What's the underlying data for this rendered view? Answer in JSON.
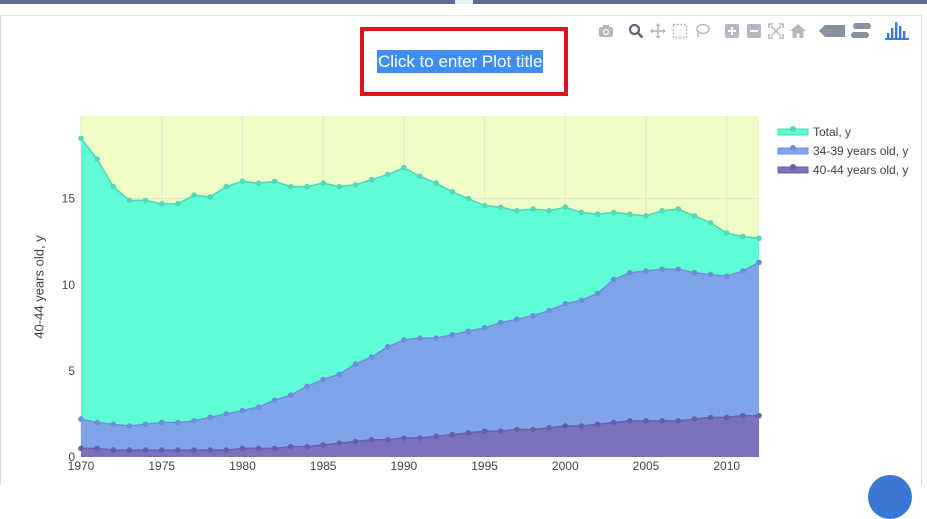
{
  "plot_title": "Click to enter Plot title",
  "toolbar": {
    "icons": [
      "camera-icon",
      "zoom-icon",
      "pan-icon",
      "box-select-icon",
      "lasso-select-icon",
      "zoom-in-icon",
      "zoom-out-icon",
      "autoscale-icon",
      "reset-axes-icon",
      "spike-lines-icon",
      "compare-hover-icon",
      "plotly-logo-icon"
    ]
  },
  "colors": {
    "plot_bg": "#eefcc5",
    "total": "#5efed6",
    "age34_39": "#80a4ea",
    "age40_44": "#7b72bf",
    "title_bg": "#3f8ef0",
    "highlight": "#e0161c"
  },
  "chart_data": {
    "type": "area",
    "title": "Click to enter Plot title",
    "xlabel": "",
    "ylabel": "40-44 years old, y",
    "xlim": [
      1970,
      2012
    ],
    "ylim": [
      0,
      19.8
    ],
    "x_ticks": [
      1970,
      1975,
      1980,
      1985,
      1990,
      1995,
      2000,
      2005,
      2010
    ],
    "y_ticks": [
      0,
      5,
      10,
      15
    ],
    "grid": true,
    "legend_position": "top-right",
    "x": [
      1970,
      1971,
      1972,
      1973,
      1974,
      1975,
      1976,
      1977,
      1978,
      1979,
      1980,
      1981,
      1982,
      1983,
      1984,
      1985,
      1986,
      1987,
      1988,
      1989,
      1990,
      1991,
      1992,
      1993,
      1994,
      1995,
      1996,
      1997,
      1998,
      1999,
      2000,
      2001,
      2002,
      2003,
      2004,
      2005,
      2006,
      2007,
      2008,
      2009,
      2010,
      2011,
      2012
    ],
    "series": [
      {
        "name": "Total, y",
        "values": [
          18.5,
          17.3,
          15.7,
          14.9,
          14.9,
          14.7,
          14.7,
          15.2,
          15.1,
          15.7,
          16.0,
          15.9,
          16.0,
          15.7,
          15.7,
          15.9,
          15.7,
          15.8,
          16.1,
          16.4,
          16.8,
          16.3,
          15.9,
          15.4,
          15.0,
          14.6,
          14.5,
          14.3,
          14.4,
          14.3,
          14.5,
          14.2,
          14.1,
          14.2,
          14.1,
          14.0,
          14.3,
          14.4,
          14.0,
          13.6,
          13.0,
          12.8,
          12.7
        ]
      },
      {
        "name": "34-39 years old, y",
        "values": [
          2.2,
          2.0,
          1.9,
          1.8,
          1.9,
          2.0,
          2.0,
          2.1,
          2.3,
          2.5,
          2.7,
          2.9,
          3.3,
          3.6,
          4.1,
          4.5,
          4.8,
          5.4,
          5.8,
          6.4,
          6.8,
          6.9,
          6.9,
          7.1,
          7.3,
          7.5,
          7.8,
          8.0,
          8.2,
          8.5,
          8.9,
          9.1,
          9.5,
          10.3,
          10.7,
          10.8,
          10.9,
          10.9,
          10.7,
          10.6,
          10.5,
          10.8,
          11.3
        ]
      },
      {
        "name": "40-44 years old, y",
        "values": [
          0.5,
          0.5,
          0.4,
          0.4,
          0.4,
          0.4,
          0.4,
          0.4,
          0.4,
          0.4,
          0.5,
          0.5,
          0.5,
          0.6,
          0.6,
          0.7,
          0.8,
          0.9,
          1.0,
          1.0,
          1.1,
          1.1,
          1.2,
          1.3,
          1.4,
          1.5,
          1.5,
          1.6,
          1.6,
          1.7,
          1.8,
          1.8,
          1.9,
          2.0,
          2.1,
          2.1,
          2.1,
          2.1,
          2.2,
          2.3,
          2.3,
          2.4,
          2.4
        ]
      }
    ]
  }
}
